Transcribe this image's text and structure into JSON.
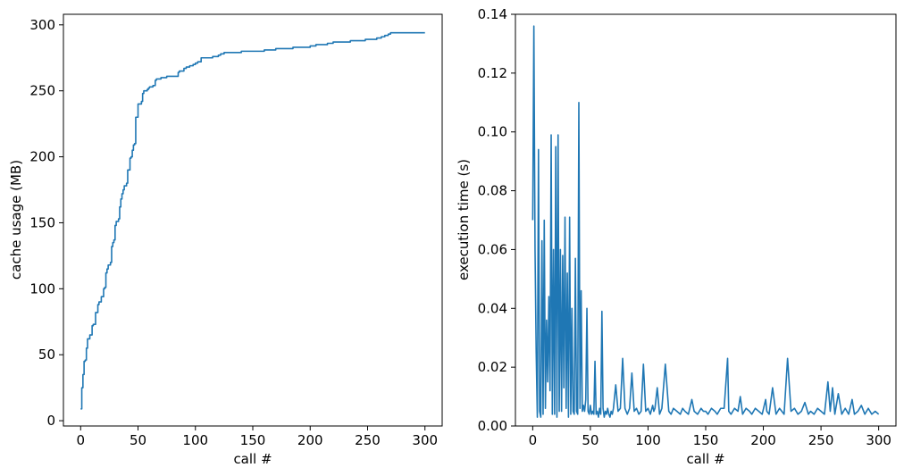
{
  "chart_data": [
    {
      "type": "line",
      "title": "",
      "xlabel": "call #",
      "ylabel": "cache usage (MB)",
      "xlim": [
        -15,
        315
      ],
      "ylim": [
        -4,
        308
      ],
      "xticks": [
        0,
        50,
        100,
        150,
        200,
        250,
        300
      ],
      "yticks": [
        0,
        50,
        100,
        150,
        200,
        250,
        300
      ],
      "xtick_labels": [
        "0",
        "50",
        "100",
        "150",
        "200",
        "250",
        "300"
      ],
      "ytick_labels": [
        "0",
        "50",
        "100",
        "150",
        "200",
        "250",
        "300"
      ],
      "grid": false,
      "color": "#1f77b4",
      "series": [
        {
          "x": [
            0,
            1,
            2,
            3,
            4,
            5,
            6,
            8,
            10,
            11,
            13,
            15,
            16,
            18,
            20,
            21,
            22,
            23,
            24,
            26,
            27,
            28,
            29,
            30,
            31,
            33,
            34,
            35,
            36,
            37,
            38,
            40,
            41,
            43,
            44,
            45,
            46,
            47,
            48,
            50,
            53,
            54,
            55,
            58,
            59,
            60,
            62,
            63,
            65,
            66,
            68,
            70,
            75,
            78,
            85,
            86,
            90,
            92,
            95,
            98,
            100,
            102,
            105,
            108,
            112,
            115,
            120,
            122,
            125,
            130,
            135,
            140,
            150,
            160,
            170,
            175,
            185,
            190,
            200,
            205,
            210,
            215,
            220,
            230,
            235,
            240,
            248,
            252,
            255,
            258,
            262,
            265,
            268,
            270,
            275,
            280,
            290,
            300
          ],
          "y": [
            9,
            25,
            35,
            45,
            46,
            55,
            62,
            65,
            72,
            73,
            82,
            88,
            90,
            94,
            100,
            101,
            112,
            115,
            118,
            120,
            132,
            135,
            137,
            148,
            151,
            153,
            162,
            168,
            172,
            175,
            178,
            180,
            190,
            199,
            200,
            205,
            209,
            210,
            230,
            240,
            242,
            248,
            250,
            251,
            252,
            253,
            253,
            254,
            258,
            259,
            259,
            260,
            261,
            261,
            264,
            265,
            267,
            268,
            269,
            270,
            271,
            272,
            275,
            275,
            275,
            276,
            277,
            278,
            279,
            279,
            279,
            280,
            280,
            281,
            282,
            282,
            283,
            283,
            284,
            285,
            285,
            286,
            287,
            287,
            288,
            288,
            289,
            289,
            289,
            290,
            291,
            292,
            293,
            294,
            294,
            294,
            294,
            294
          ]
        }
      ]
    },
    {
      "type": "line",
      "title": "",
      "xlabel": "call #",
      "ylabel": "execution time (s)",
      "xlim": [
        -15,
        315
      ],
      "ylim": [
        0,
        0.14
      ],
      "xticks": [
        0,
        50,
        100,
        150,
        200,
        250,
        300
      ],
      "yticks": [
        0,
        0.02,
        0.04,
        0.06,
        0.08,
        0.1,
        0.12,
        0.14
      ],
      "xtick_labels": [
        "0",
        "50",
        "100",
        "150",
        "200",
        "250",
        "300"
      ],
      "ytick_labels": [
        "0.00",
        "0.02",
        "0.04",
        "0.06",
        "0.08",
        "0.10",
        "0.12",
        "0.14"
      ],
      "grid": false,
      "color": "#1f77b4",
      "series": [
        {
          "x": [
            0,
            1,
            2,
            3,
            4,
            5,
            6,
            7,
            8,
            9,
            10,
            11,
            12,
            13,
            14,
            15,
            16,
            17,
            18,
            19,
            20,
            21,
            22,
            23,
            24,
            25,
            26,
            27,
            28,
            29,
            30,
            31,
            32,
            33,
            34,
            35,
            36,
            37,
            38,
            39,
            40,
            41,
            42,
            43,
            44,
            45,
            46,
            47,
            48,
            49,
            50,
            51,
            52,
            53,
            54,
            55,
            56,
            57,
            58,
            59,
            60,
            61,
            62,
            63,
            64,
            65,
            66,
            67,
            68,
            69,
            70,
            72,
            74,
            76,
            78,
            80,
            82,
            84,
            86,
            88,
            90,
            92,
            94,
            96,
            98,
            100,
            102,
            104,
            105,
            106,
            108,
            110,
            112,
            115,
            118,
            120,
            122,
            125,
            128,
            130,
            132,
            135,
            138,
            140,
            143,
            146,
            148,
            150,
            152,
            155,
            158,
            160,
            163,
            166,
            169,
            170,
            172,
            175,
            178,
            180,
            182,
            185,
            188,
            190,
            193,
            196,
            199,
            202,
            203,
            205,
            208,
            211,
            214,
            216,
            218,
            221,
            224,
            227,
            230,
            233,
            236,
            239,
            241,
            244,
            247,
            250,
            253,
            256,
            258,
            260,
            262,
            265,
            268,
            271,
            274,
            277,
            279,
            282,
            285,
            288,
            291,
            294,
            297,
            300
          ],
          "y": [
            0.07,
            0.136,
            0.06,
            0.025,
            0.003,
            0.094,
            0.005,
            0.003,
            0.063,
            0.004,
            0.07,
            0.006,
            0.036,
            0.015,
            0.044,
            0.012,
            0.099,
            0.004,
            0.06,
            0.004,
            0.095,
            0.003,
            0.099,
            0.005,
            0.06,
            0.005,
            0.058,
            0.013,
            0.071,
            0.006,
            0.052,
            0.003,
            0.071,
            0.004,
            0.04,
            0.005,
            0.004,
            0.057,
            0.005,
            0.004,
            0.11,
            0.006,
            0.046,
            0.005,
            0.007,
            0.005,
            0.009,
            0.04,
            0.005,
            0.004,
            0.007,
            0.004,
            0.005,
            0.004,
            0.022,
            0.004,
            0.005,
            0.003,
            0.006,
            0.004,
            0.039,
            0.006,
            0.003,
            0.005,
            0.004,
            0.006,
            0.004,
            0.003,
            0.005,
            0.004,
            0.006,
            0.014,
            0.005,
            0.006,
            0.023,
            0.006,
            0.004,
            0.006,
            0.018,
            0.005,
            0.006,
            0.004,
            0.005,
            0.021,
            0.005,
            0.006,
            0.004,
            0.007,
            0.005,
            0.006,
            0.013,
            0.004,
            0.006,
            0.021,
            0.005,
            0.004,
            0.006,
            0.005,
            0.004,
            0.006,
            0.005,
            0.004,
            0.009,
            0.005,
            0.004,
            0.006,
            0.005,
            0.005,
            0.004,
            0.006,
            0.005,
            0.004,
            0.006,
            0.006,
            0.023,
            0.005,
            0.004,
            0.006,
            0.005,
            0.01,
            0.004,
            0.006,
            0.005,
            0.004,
            0.006,
            0.005,
            0.004,
            0.009,
            0.005,
            0.004,
            0.013,
            0.004,
            0.006,
            0.005,
            0.004,
            0.023,
            0.005,
            0.006,
            0.004,
            0.005,
            0.008,
            0.004,
            0.005,
            0.004,
            0.006,
            0.005,
            0.004,
            0.015,
            0.005,
            0.013,
            0.004,
            0.011,
            0.004,
            0.006,
            0.004,
            0.009,
            0.004,
            0.005,
            0.007,
            0.004,
            0.006,
            0.004,
            0.005,
            0.004
          ]
        }
      ]
    }
  ]
}
